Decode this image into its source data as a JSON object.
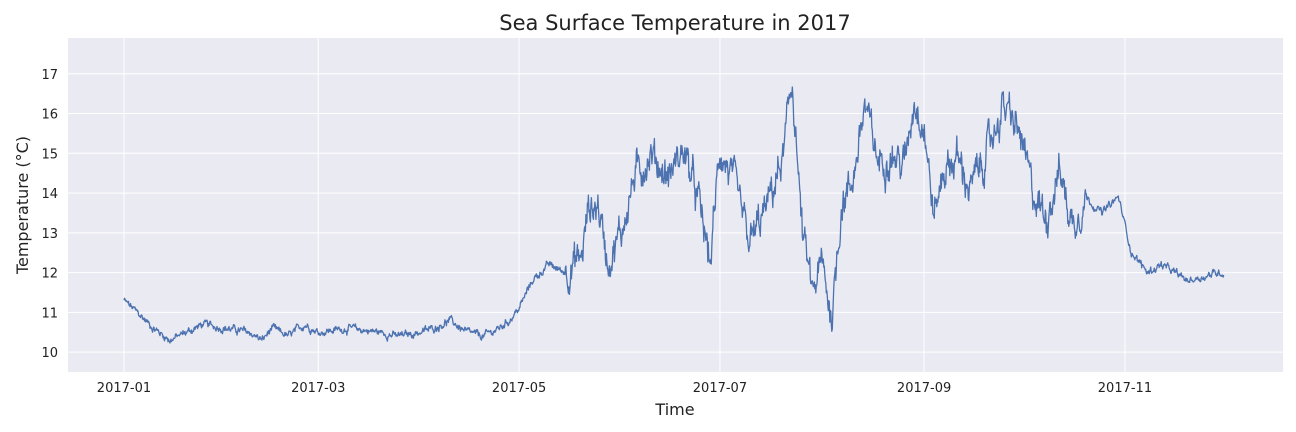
{
  "chart_data": {
    "type": "line",
    "title": "Sea Surface Temperature in 2017",
    "xlabel": "Time",
    "ylabel": "Temperature (°C)",
    "x_ticks": [
      "2017-01",
      "2017-03",
      "2017-05",
      "2017-07",
      "2017-09",
      "2017-11"
    ],
    "y_ticks": [
      10,
      11,
      12,
      13,
      14,
      15,
      16,
      17
    ],
    "xlim": [
      "2016-12-15",
      "2017-12-19"
    ],
    "ylim": [
      9.5,
      17.9
    ],
    "grid": true,
    "colors": {
      "line": "#4c72b0",
      "plot_background": "#eaeaf2",
      "grid": "#ffffff"
    },
    "series": [
      {
        "x": [
          "2017-01-01",
          "2017-01-05",
          "2017-01-10",
          "2017-01-15",
          "2017-01-20",
          "2017-01-25",
          "2017-02-01",
          "2017-02-08",
          "2017-02-12",
          "2017-02-15",
          "2017-02-20",
          "2017-02-25",
          "2017-03-01",
          "2017-03-10",
          "2017-03-20",
          "2017-03-25",
          "2017-04-01",
          "2017-04-05",
          "2017-04-10",
          "2017-04-15",
          "2017-04-20",
          "2017-04-25",
          "2017-04-28",
          "2017-05-01",
          "2017-05-05",
          "2017-05-10",
          "2017-05-15",
          "2017-05-20",
          "2017-05-22",
          "2017-05-25",
          "2017-05-28",
          "2017-06-01",
          "2017-06-05",
          "2017-06-10",
          "2017-06-15",
          "2017-06-20",
          "2017-06-25",
          "2017-06-28",
          "2017-07-01",
          "2017-07-05",
          "2017-07-10",
          "2017-07-15",
          "2017-07-20",
          "2017-07-23",
          "2017-07-26",
          "2017-07-29",
          "2017-08-01",
          "2017-08-04",
          "2017-08-07",
          "2017-08-10",
          "2017-08-14",
          "2017-08-18",
          "2017-08-22",
          "2017-08-26",
          "2017-08-29",
          "2017-09-01",
          "2017-09-04",
          "2017-09-07",
          "2017-09-11",
          "2017-09-15",
          "2017-09-20",
          "2017-09-25",
          "2017-09-30",
          "2017-10-04",
          "2017-10-08",
          "2017-10-12",
          "2017-10-16",
          "2017-10-20",
          "2017-10-25",
          "2017-10-30",
          "2017-11-03",
          "2017-11-08",
          "2017-11-12",
          "2017-11-16",
          "2017-11-20",
          "2017-11-25",
          "2017-11-29",
          "2017-12-01"
        ],
        "y": [
          11.3,
          11.0,
          10.6,
          10.3,
          10.5,
          10.7,
          10.6,
          10.5,
          10.3,
          10.6,
          10.4,
          10.7,
          10.5,
          10.6,
          10.5,
          10.4,
          10.5,
          10.6,
          10.8,
          10.5,
          10.4,
          10.6,
          10.8,
          11.1,
          11.8,
          12.2,
          12.0,
          12.4,
          13.6,
          13.7,
          12.3,
          13.0,
          14.4,
          15.0,
          14.4,
          15.1,
          13.6,
          12.2,
          15.1,
          14.3,
          12.7,
          13.6,
          14.8,
          16.8,
          13.0,
          11.5,
          12.2,
          10.9,
          13.8,
          14.2,
          16.2,
          14.8,
          15.0,
          14.7,
          16.4,
          15.7,
          13.4,
          14.6,
          14.9,
          14.1,
          15.0,
          16.2,
          15.5,
          14.0,
          13.4,
          14.6,
          13.2,
          13.9,
          13.5,
          13.9,
          12.5,
          12.0,
          12.2,
          12.0,
          11.8,
          11.9,
          12.0,
          12.0
        ]
      }
    ]
  }
}
